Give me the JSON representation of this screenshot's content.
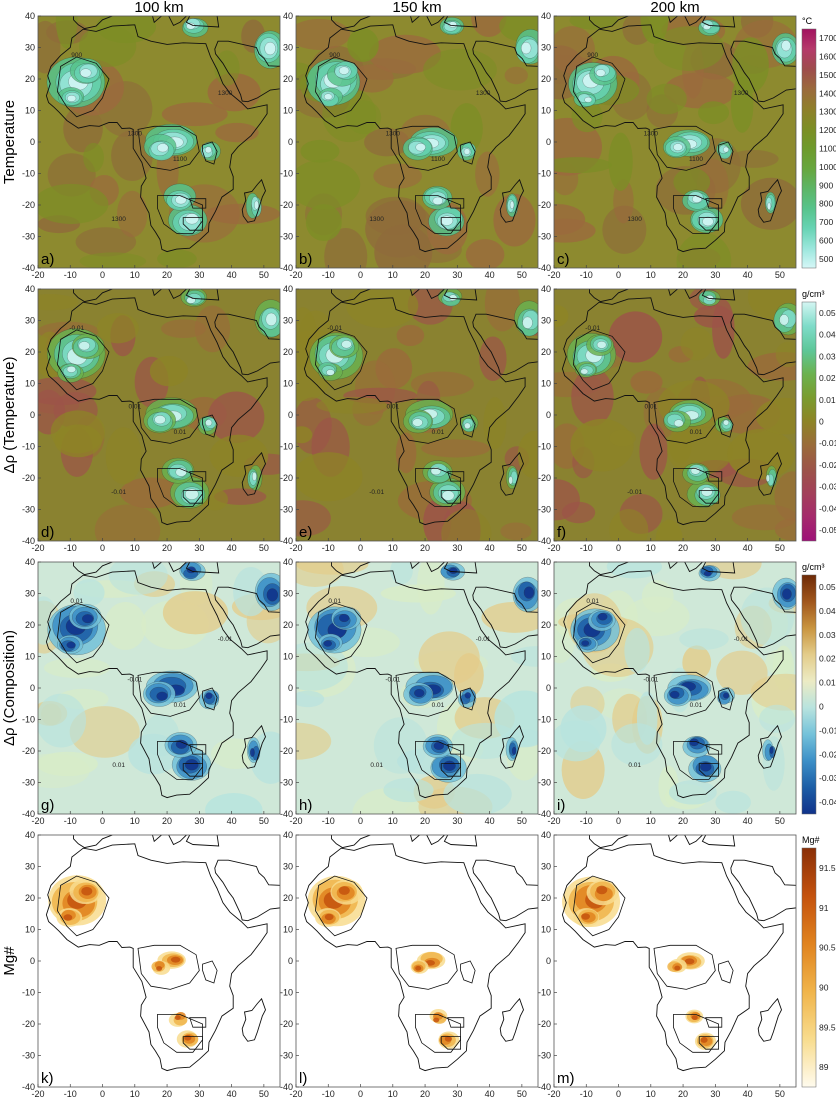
{
  "columns": [
    "100 km",
    "150 km",
    "200 km"
  ],
  "rows": [
    {
      "title": "Temperature",
      "panel_labels": [
        "a)",
        "b)",
        "c)"
      ],
      "colorbar": {
        "unit": "°C",
        "ticks": [
          "1700",
          "1600",
          "1500",
          "1400",
          "1300",
          "1200",
          "1100",
          "1000",
          "900",
          "800",
          "700",
          "600",
          "500"
        ],
        "colors": [
          "#a2125f",
          "#b53a6b",
          "#9e4c4c",
          "#9b6a3d",
          "#8f7f2b",
          "#7c8e25",
          "#6e9a2c",
          "#67a63e",
          "#5db566",
          "#57c38b",
          "#67d3b3",
          "#9ae6dc",
          "#d6f7f7"
        ]
      },
      "contour_labels": [
        "900",
        "1300",
        "1100",
        "1300",
        "1300"
      ]
    },
    {
      "title": "Δρ (Temperature)",
      "panel_labels": [
        "d)",
        "e)",
        "f)"
      ],
      "colorbar": {
        "unit": "g/cm³",
        "ticks": [
          "0.05",
          "0.04",
          "0.03",
          "0.02",
          "0.01",
          "0",
          "-0.01",
          "-0.02",
          "-0.03",
          "-0.04",
          "-0.05"
        ],
        "colors": [
          "#d4f6f3",
          "#7fdcc9",
          "#5dc79a",
          "#6bb24f",
          "#7a9c2f",
          "#8d8426",
          "#9a6b3a",
          "#9c5449",
          "#a3405a",
          "#a52a6c",
          "#9e1278"
        ]
      },
      "contour_labels": [
        "-0.01",
        "0.01",
        "0.01",
        "-0.01"
      ]
    },
    {
      "title": "Δρ (Composition)",
      "panel_labels": [
        "g)",
        "h)",
        "i)"
      ],
      "colorbar": {
        "unit": "g/cm³",
        "ticks": [
          "0.05",
          "0.04",
          "0.03",
          "0.02",
          "0.01",
          "0",
          "-0.01",
          "-0.02",
          "-0.03",
          "-0.04"
        ],
        "colors": [
          "#6e2a07",
          "#a0561c",
          "#c99540",
          "#e3cc8a",
          "#ecebc4",
          "#b8e3de",
          "#74c2da",
          "#3c8fc7",
          "#1d5ea6",
          "#10328a"
        ]
      },
      "contour_labels": [
        "0.01",
        "-0.01",
        "0.01",
        "0.01",
        "-0.01"
      ]
    },
    {
      "title": "Mg#",
      "panel_labels": [
        "k)",
        "l)",
        "m)"
      ],
      "colorbar": {
        "unit": "Mg#",
        "ticks": [
          "91.5",
          "91",
          "90.5",
          "90",
          "89.5",
          "89"
        ],
        "colors": [
          "#8a2f07",
          "#c4520e",
          "#e0831f",
          "#f0b44a",
          "#f8dc8e",
          "#fffbee"
        ]
      }
    }
  ],
  "x_ticks": [
    "-20",
    "-10",
    "0",
    "10",
    "20",
    "30",
    "40",
    "50"
  ],
  "y_ticks": [
    "40",
    "30",
    "20",
    "10",
    "0",
    "-10",
    "-20",
    "-30",
    "-40"
  ],
  "map_extent": {
    "lon": [
      -20,
      55
    ],
    "lat": [
      -40,
      40
    ]
  }
}
